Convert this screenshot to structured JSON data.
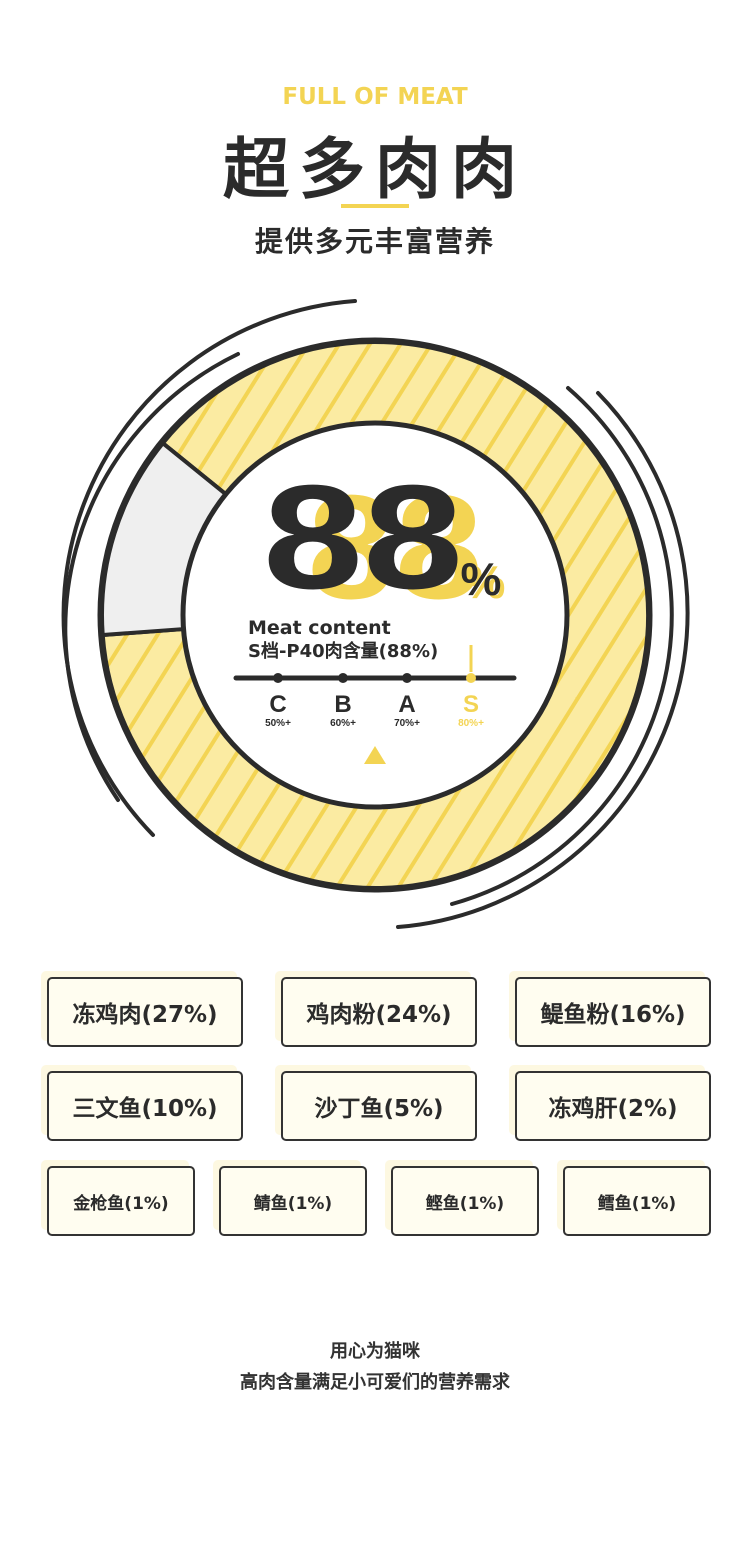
{
  "header": {
    "title_en": "FULL OF MEAT",
    "title_cn": "超多肉肉",
    "subtitle": "提供多元丰富营养"
  },
  "gauge": {
    "value": "88",
    "unit": "%",
    "meat_fraction": 0.88,
    "label_en": "Meat content",
    "label_cn": "S档-P40肉含量(88%)",
    "grades": [
      {
        "letter": "C",
        "range": "50%+"
      },
      {
        "letter": "B",
        "range": "60%+"
      },
      {
        "letter": "A",
        "range": "70%+"
      },
      {
        "letter": "S",
        "range": "80%+",
        "active": true
      }
    ],
    "colors": {
      "accent": "#f3d453",
      "meat_fill": "#fbeba2",
      "other_fill": "#efefef",
      "ink": "#2b2b2b"
    }
  },
  "ingredients": [
    {
      "name": "冻鸡肉(27%)"
    },
    {
      "name": "鸡肉粉(24%)"
    },
    {
      "name": "鳀鱼粉(16%)"
    },
    {
      "name": "三文鱼(10%)"
    },
    {
      "name": "沙丁鱼(5%)"
    },
    {
      "name": "冻鸡肝(2%)"
    },
    {
      "name": "金枪鱼(1%)"
    },
    {
      "name": "鲭鱼(1%)"
    },
    {
      "name": "鲣鱼(1%)"
    },
    {
      "name": "鳕鱼(1%)"
    }
  ],
  "footer": {
    "line1": "用心为猫咪",
    "line2": "高肉含量满足小可爱们的营养需求"
  }
}
